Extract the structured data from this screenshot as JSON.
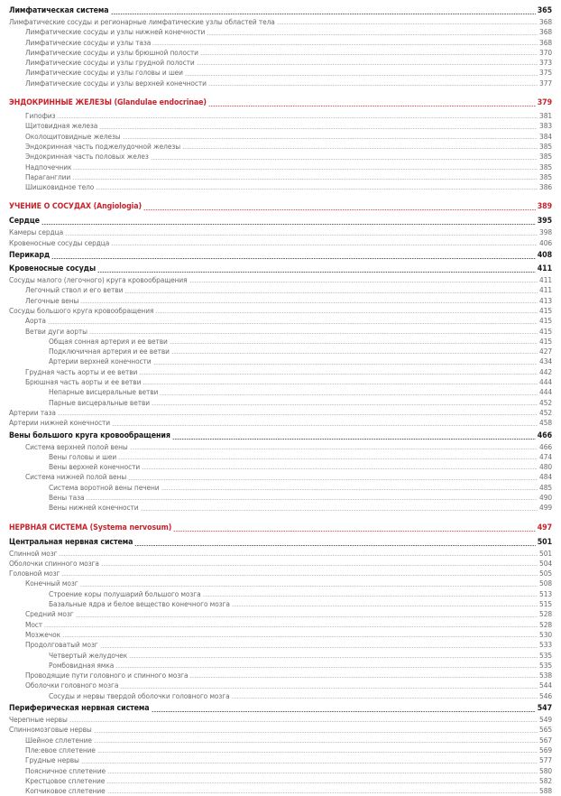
{
  "accent_color": "#c8232c",
  "entries": [
    {
      "style": "h2",
      "level": 0,
      "text": "Лимфатическая система",
      "page": "365"
    },
    {
      "style": "n",
      "level": 0,
      "text": "Лимфатические сосуды и регионарные лимфатические узлы областей тела",
      "page": "368"
    },
    {
      "style": "n",
      "level": 1,
      "text": "Лимфатические сосуды и узлы нижней конечности",
      "page": "368"
    },
    {
      "style": "n",
      "level": 1,
      "text": "Лимфатические сосуды и узлы таза",
      "page": "368"
    },
    {
      "style": "n",
      "level": 1,
      "text": "Лимфатические сосуды и узлы брюшной полости",
      "page": "370"
    },
    {
      "style": "n",
      "level": 1,
      "text": "Лимфатические сосуды и узлы грудной полости",
      "page": "373"
    },
    {
      "style": "n",
      "level": 1,
      "text": "Лимфатические сосуды и узлы головы и шеи",
      "page": "375"
    },
    {
      "style": "n",
      "level": 1,
      "text": "Лимфатические сосуды и узлы верхней конечности",
      "page": "377"
    },
    {
      "style": "h1",
      "level": 0,
      "text": "ЭНДОКРИННЫЕ ЖЕЛЕЗЫ (Glandulae endocrinae)",
      "page": "379"
    },
    {
      "style": "n",
      "level": 1,
      "text": "Гипофиз",
      "page": "381"
    },
    {
      "style": "n",
      "level": 1,
      "text": "Щитовидная железа",
      "page": "383"
    },
    {
      "style": "n",
      "level": 1,
      "text": "Околощитовидные железы",
      "page": "384"
    },
    {
      "style": "n",
      "level": 1,
      "text": "Эндокринная часть поджелудочной железы",
      "page": "385"
    },
    {
      "style": "n",
      "level": 1,
      "text": "Эндокринная часть половых желез",
      "page": "385"
    },
    {
      "style": "n",
      "level": 1,
      "text": "Надпочечник",
      "page": "385"
    },
    {
      "style": "n",
      "level": 1,
      "text": "Параганглии",
      "page": "385"
    },
    {
      "style": "n",
      "level": 1,
      "text": "Шишковидное тело",
      "page": "386"
    },
    {
      "style": "h1",
      "level": 0,
      "text": "УЧЕНИЕ О СОСУДАХ (Angiologia)",
      "page": "389"
    },
    {
      "style": "h2",
      "level": 0,
      "text": "Сердце",
      "page": "395"
    },
    {
      "style": "n",
      "level": 0,
      "text": "Камеры сердца",
      "page": "398"
    },
    {
      "style": "n",
      "level": 0,
      "text": "Кровеносные сосуды сердца",
      "page": "406"
    },
    {
      "style": "h2",
      "level": 0,
      "text": "Перикард",
      "page": "408"
    },
    {
      "style": "h2",
      "level": 0,
      "text": "Кровеносные сосуды",
      "page": "411"
    },
    {
      "style": "n",
      "level": 0,
      "text": "Сосуды малого (легочного) круга кровообращения",
      "page": "411"
    },
    {
      "style": "n",
      "level": 1,
      "text": "Легочный ствол и его ветви",
      "page": "411"
    },
    {
      "style": "n",
      "level": 1,
      "text": "Легочные вены",
      "page": "413"
    },
    {
      "style": "n",
      "level": 0,
      "text": "Сосуды большого круга кровообращения",
      "page": "415"
    },
    {
      "style": "n",
      "level": 1,
      "text": "Аорта",
      "page": "415"
    },
    {
      "style": "n",
      "level": 1,
      "text": "Ветви дуги аорты",
      "page": "415"
    },
    {
      "style": "n",
      "level": 2,
      "text": "Общая сонная артерия и ее ветви",
      "page": "415"
    },
    {
      "style": "n",
      "level": 2,
      "text": "Подключичная артерия и ее ветви",
      "page": "427"
    },
    {
      "style": "n",
      "level": 2,
      "text": "Артерии верхней конечности",
      "page": "434"
    },
    {
      "style": "n",
      "level": 1,
      "text": "Грудная часть аорты и ее ветви",
      "page": "442"
    },
    {
      "style": "n",
      "level": 1,
      "text": "Брюшная часть аорты и ее ветви",
      "page": "444"
    },
    {
      "style": "n",
      "level": 2,
      "text": "Непарные висцеральные ветви",
      "page": "444"
    },
    {
      "style": "n",
      "level": 2,
      "text": "Парные висцеральные ветви",
      "page": "452"
    },
    {
      "style": "n",
      "level": 0,
      "text": "Артерии таза",
      "page": "452"
    },
    {
      "style": "n",
      "level": 0,
      "text": "Артерии нижней конечности",
      "page": "458"
    },
    {
      "style": "h2",
      "level": 0,
      "text": "Вены большого круга кровообращения",
      "page": "466"
    },
    {
      "style": "n",
      "level": 1,
      "text": "Система верхней полой вены",
      "page": "466"
    },
    {
      "style": "n",
      "level": 2,
      "text": "Вены головы и шеи",
      "page": "474"
    },
    {
      "style": "n",
      "level": 2,
      "text": "Вены верхней конечности",
      "page": "480"
    },
    {
      "style": "n",
      "level": 1,
      "text": "Система нижней полой вены",
      "page": "484"
    },
    {
      "style": "n",
      "level": 2,
      "text": "Система воротной вены печени",
      "page": "485"
    },
    {
      "style": "n",
      "level": 2,
      "text": "Вены таза",
      "page": "490"
    },
    {
      "style": "n",
      "level": 2,
      "text": "Вены нижней конечности",
      "page": "499"
    },
    {
      "style": "h1",
      "level": 0,
      "text": "НЕРВНАЯ СИСТЕМА (Systema nervosum)",
      "page": "497"
    },
    {
      "style": "h2",
      "level": 0,
      "text": "Центральная нервная система",
      "page": "501"
    },
    {
      "style": "n",
      "level": 0,
      "text": "Спинной мозг",
      "page": "501"
    },
    {
      "style": "n",
      "level": 0,
      "text": "Оболочки спинного мозга",
      "page": "504"
    },
    {
      "style": "n",
      "level": 0,
      "text": "Головной мозг",
      "page": "505"
    },
    {
      "style": "n",
      "level": 1,
      "text": "Конечный мозг",
      "page": "508"
    },
    {
      "style": "n",
      "level": 2,
      "text": "Строение коры полушарий большого мозга",
      "page": "513"
    },
    {
      "style": "n",
      "level": 2,
      "text": "Базальные ядра и белое вещество конечного мозга",
      "page": "515"
    },
    {
      "style": "n",
      "level": 1,
      "text": "Средний мозг",
      "page": "528"
    },
    {
      "style": "n",
      "level": 1,
      "text": "Мост",
      "page": "528"
    },
    {
      "style": "n",
      "level": 1,
      "text": "Мозжечок",
      "page": "530"
    },
    {
      "style": "n",
      "level": 1,
      "text": "Продолговатый мозг",
      "page": "533"
    },
    {
      "style": "n",
      "level": 2,
      "text": "Четвертый желудочек",
      "page": "535"
    },
    {
      "style": "n",
      "level": 2,
      "text": "Ромбовидная ямка",
      "page": "535"
    },
    {
      "style": "n",
      "level": 1,
      "text": "Проводящие пути головного и спинного мозга",
      "page": "538"
    },
    {
      "style": "n",
      "level": 1,
      "text": "Оболочки головного мозга",
      "page": "544"
    },
    {
      "style": "n",
      "level": 2,
      "text": "Сосуды и нервы твердой оболочки головного мозга",
      "page": "546"
    },
    {
      "style": "h2",
      "level": 0,
      "text": "Периферическая нервная система",
      "page": "547"
    },
    {
      "style": "n",
      "level": 0,
      "text": "Черепные нервы",
      "page": "549"
    },
    {
      "style": "n",
      "level": 0,
      "text": "Спинномозговые нервы",
      "page": "565"
    },
    {
      "style": "n",
      "level": 1,
      "text": "Шейное сплетение",
      "page": "567"
    },
    {
      "style": "n",
      "level": 1,
      "text": "Пле:евое сплетение",
      "page": "569"
    },
    {
      "style": "n",
      "level": 1,
      "text": "Грудные нервы",
      "page": "577"
    },
    {
      "style": "n",
      "level": 1,
      "text": "Поясничное сплетение",
      "page": "580"
    },
    {
      "style": "n",
      "level": 1,
      "text": "Крестцовое сплетение",
      "page": "582"
    },
    {
      "style": "n",
      "level": 1,
      "text": "Копчиковое сплетение",
      "page": "588"
    }
  ]
}
